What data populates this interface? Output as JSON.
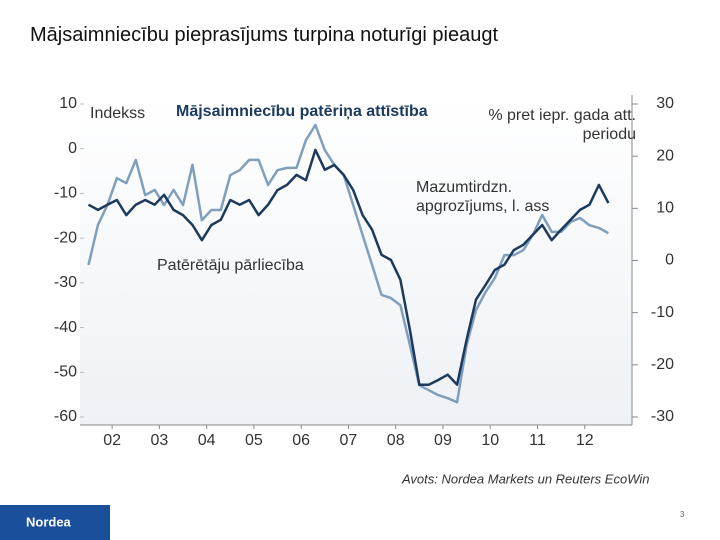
{
  "title": "Mājsaimniecību pieprasījums turpina noturīgi pieaugt",
  "chart_data": {
    "type": "line",
    "title": "Mājsaimniecību patēriņa attīstība",
    "ylabel": "Indekss",
    "y2label": "% pret iepr. gada att. periodu",
    "x": [
      2002.0,
      2002.2,
      2002.4,
      2002.6,
      2002.8,
      2003.0,
      2003.2,
      2003.4,
      2003.6,
      2003.8,
      2004.0,
      2004.2,
      2004.4,
      2004.6,
      2004.8,
      2005.0,
      2005.2,
      2005.4,
      2005.6,
      2005.8,
      2006.0,
      2006.2,
      2006.4,
      2006.6,
      2006.8,
      2007.0,
      2007.2,
      2007.4,
      2007.6,
      2007.8,
      2008.0,
      2008.2,
      2008.4,
      2008.6,
      2008.8,
      2009.0,
      2009.2,
      2009.4,
      2009.6,
      2009.8,
      2010.0,
      2010.2,
      2010.4,
      2010.6,
      2010.8,
      2011.0,
      2011.2,
      2011.4,
      2011.6,
      2011.8,
      2012.0,
      2012.2,
      2012.4,
      2012.6,
      2012.8,
      2013.0
    ],
    "series": [
      {
        "name": "Patērētāju pārliecība",
        "color": "#7f9fbd",
        "axis": "y",
        "values": [
          -26,
          -17,
          -12.6,
          -6.6,
          -7.7,
          -2.5,
          -10.4,
          -9.2,
          -12.6,
          -9.2,
          -12.6,
          -3.6,
          -16,
          -13.7,
          -13.7,
          -5.9,
          -4.8,
          -2.5,
          -2.5,
          -8.1,
          -4.8,
          -4.3,
          -4.3,
          1.9,
          5.3,
          -0.3,
          -3.6,
          -5.9,
          -12.6,
          -19.3,
          -26,
          -32.7,
          -33.4,
          -35,
          -43.9,
          -52.9,
          -54,
          -55.1,
          -55.8,
          -56.7,
          -43.9,
          -36.1,
          -32.1,
          -28.9,
          -23.8,
          -23.8,
          -22.7,
          -19.3,
          -14.8,
          -18.6,
          -18.6,
          -16.4,
          -15.5,
          -17.1,
          -17.7,
          -18.9
        ]
      },
      {
        "name": "Mazumtirdzn. apgrozījums, l. ass",
        "color": "#1b3a5c",
        "axis": "y2",
        "values": [
          10.7,
          9.7,
          10.7,
          11.6,
          8.7,
          10.7,
          11.6,
          10.7,
          12.6,
          9.7,
          8.7,
          6.8,
          3.9,
          6.8,
          7.8,
          11.6,
          10.7,
          11.6,
          8.7,
          10.7,
          13.5,
          14.5,
          16.4,
          15.4,
          21.2,
          17.4,
          18.3,
          16.4,
          13.5,
          8.7,
          5.9,
          1.1,
          0.1,
          -3.7,
          -13.3,
          -23.8,
          -23.8,
          -22.9,
          -21.9,
          -23.8,
          -15.2,
          -7.5,
          -4.7,
          -1.8,
          -0.8,
          2.0,
          3.0,
          4.9,
          6.8,
          3.9,
          5.9,
          7.8,
          9.7,
          10.7,
          14.5,
          11.0
        ]
      }
    ],
    "xlim": [
      2001.82,
      2013.5
    ],
    "xticks": [
      {
        "value": 2002.5,
        "label": "02"
      },
      {
        "value": 2003.5,
        "label": "03"
      },
      {
        "value": 2004.5,
        "label": "04"
      },
      {
        "value": 2005.5,
        "label": "05"
      },
      {
        "value": 2006.5,
        "label": "06"
      },
      {
        "value": 2007.5,
        "label": "07"
      },
      {
        "value": 2008.5,
        "label": "08"
      },
      {
        "value": 2009.5,
        "label": "09"
      },
      {
        "value": 2010.5,
        "label": "10"
      },
      {
        "value": 2011.5,
        "label": "11"
      },
      {
        "value": 2012.5,
        "label": "12"
      }
    ],
    "ylim": [
      -60,
      10
    ],
    "yticks": [
      -60,
      -50,
      -40,
      -30,
      -20,
      -10,
      0,
      10
    ],
    "y2lim": [
      -30,
      30
    ],
    "y2ticks": [
      -30,
      -20,
      -10,
      0,
      10,
      20,
      30
    ]
  },
  "source": "Avots: Nordea Markets un Reuters EcoWin",
  "logo": "Nordea",
  "page_number": "3"
}
